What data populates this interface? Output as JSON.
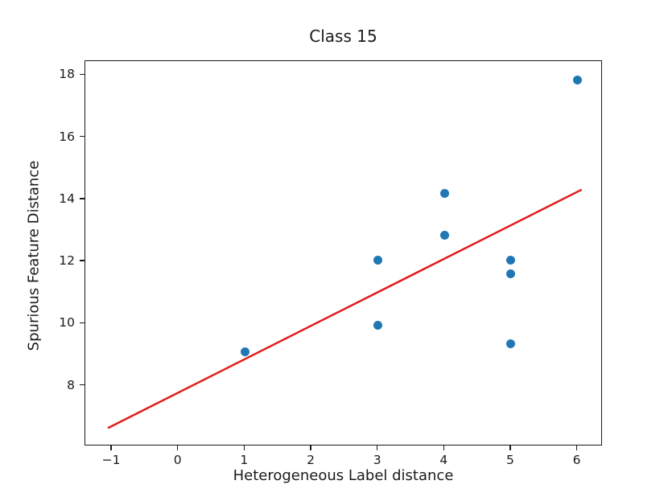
{
  "figure": {
    "background": "#ffffff"
  },
  "colors": {
    "point": "#1f77b4",
    "trend_line": "#e31b1c",
    "spine": "#1a1a1a",
    "text": "#1a1a1a"
  },
  "chart_data": {
    "type": "scatter",
    "title": "Class 15",
    "xlabel": "Heterogeneous Label distance",
    "ylabel": "Spurious Feature Distance",
    "xlim": [
      -1.4,
      6.38
    ],
    "ylim": [
      6.05,
      18.45
    ],
    "xtick_values": [
      -1,
      0,
      1,
      2,
      3,
      4,
      5,
      6
    ],
    "xtick_labels": [
      "−1",
      "0",
      "1",
      "2",
      "3",
      "4",
      "5",
      "6"
    ],
    "ytick_values": [
      8,
      10,
      12,
      14,
      16,
      18
    ],
    "ytick_labels": [
      "8",
      "10",
      "12",
      "14",
      "16",
      "18"
    ],
    "grid": false,
    "legend": null,
    "series": [
      {
        "name": "scatter-points",
        "type": "scatter",
        "color": "#1f77b4",
        "points": [
          [
            1,
            9.1
          ],
          [
            3,
            12.05
          ],
          [
            3,
            9.95
          ],
          [
            4,
            14.2
          ],
          [
            4,
            12.85
          ],
          [
            5,
            12.05
          ],
          [
            5,
            11.6
          ],
          [
            5,
            9.35
          ],
          [
            6,
            17.85
          ]
        ]
      },
      {
        "name": "trend-line",
        "type": "line",
        "color": "#e31b1c",
        "points": [
          [
            -1.05,
            6.65
          ],
          [
            6.05,
            14.3
          ]
        ]
      }
    ]
  }
}
